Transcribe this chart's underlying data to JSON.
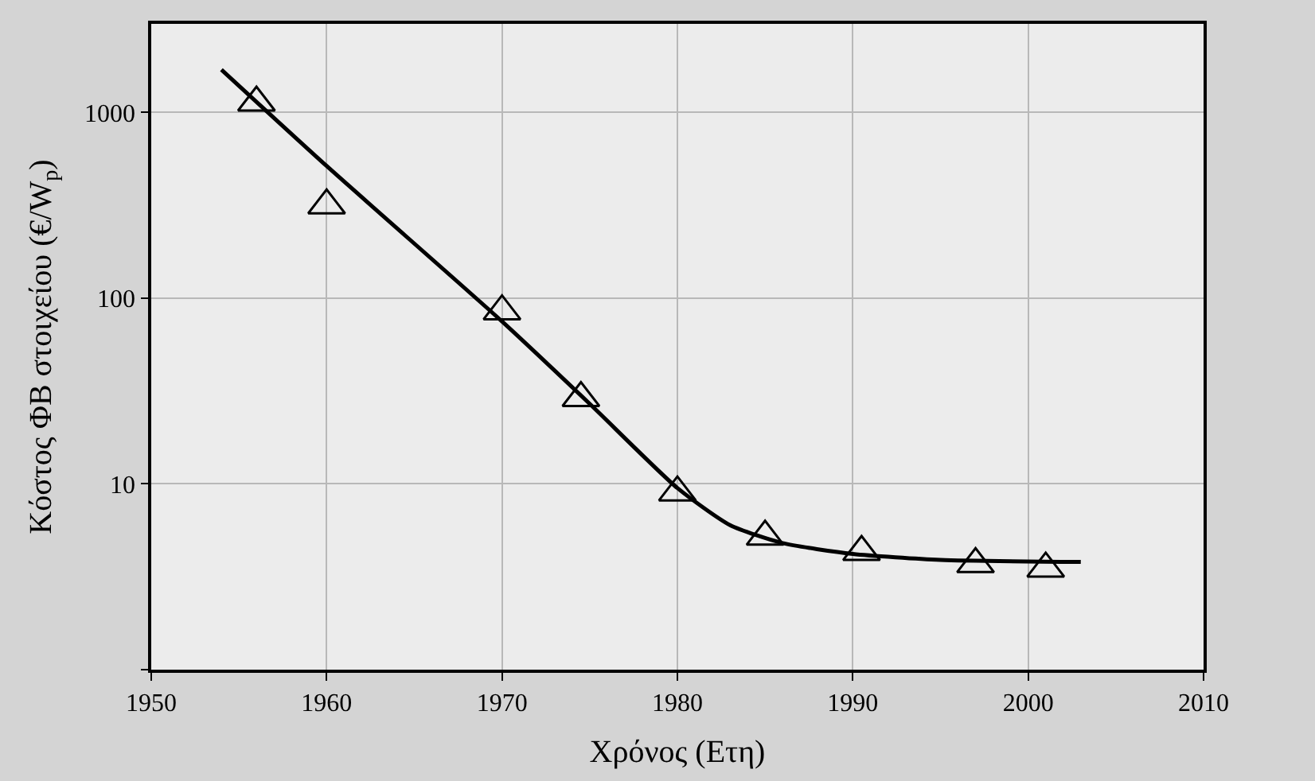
{
  "chart_data": {
    "type": "scatter",
    "xlabel": "Χρόνος (Ετη)",
    "ylabel": "Κόστος ΦΒ στοιχείου (€/W$_{p}$)",
    "log": "y",
    "grid": true,
    "marker": "triangle",
    "xlim": [
      1950,
      2010
    ],
    "xticks": [
      1950,
      1960,
      1970,
      1980,
      1990,
      2000,
      2010
    ],
    "ylim": [
      1,
      3000
    ],
    "yticks": [
      {
        "value": 1,
        "label": null
      },
      10,
      100,
      1000
    ],
    "series": [
      {
        "color": "#000000",
        "x": [
          1956,
          1960,
          1970,
          1974.5,
          1980,
          1985,
          1990.5,
          1997,
          2001
        ],
        "values": [
          1130,
          316,
          85,
          29,
          9,
          5.2,
          4.3,
          3.7,
          3.5
        ]
      },
      {
        "type": "line",
        "marker": "none",
        "color": "#000000",
        "x": [
          1954,
          1960,
          1970,
          1975,
          1980,
          1983,
          1986,
          1990,
          1995,
          2003
        ],
        "values": [
          1700,
          515,
          75,
          27,
          9.5,
          6,
          4.8,
          4.2,
          3.9,
          3.8
        ]
      }
    ]
  }
}
